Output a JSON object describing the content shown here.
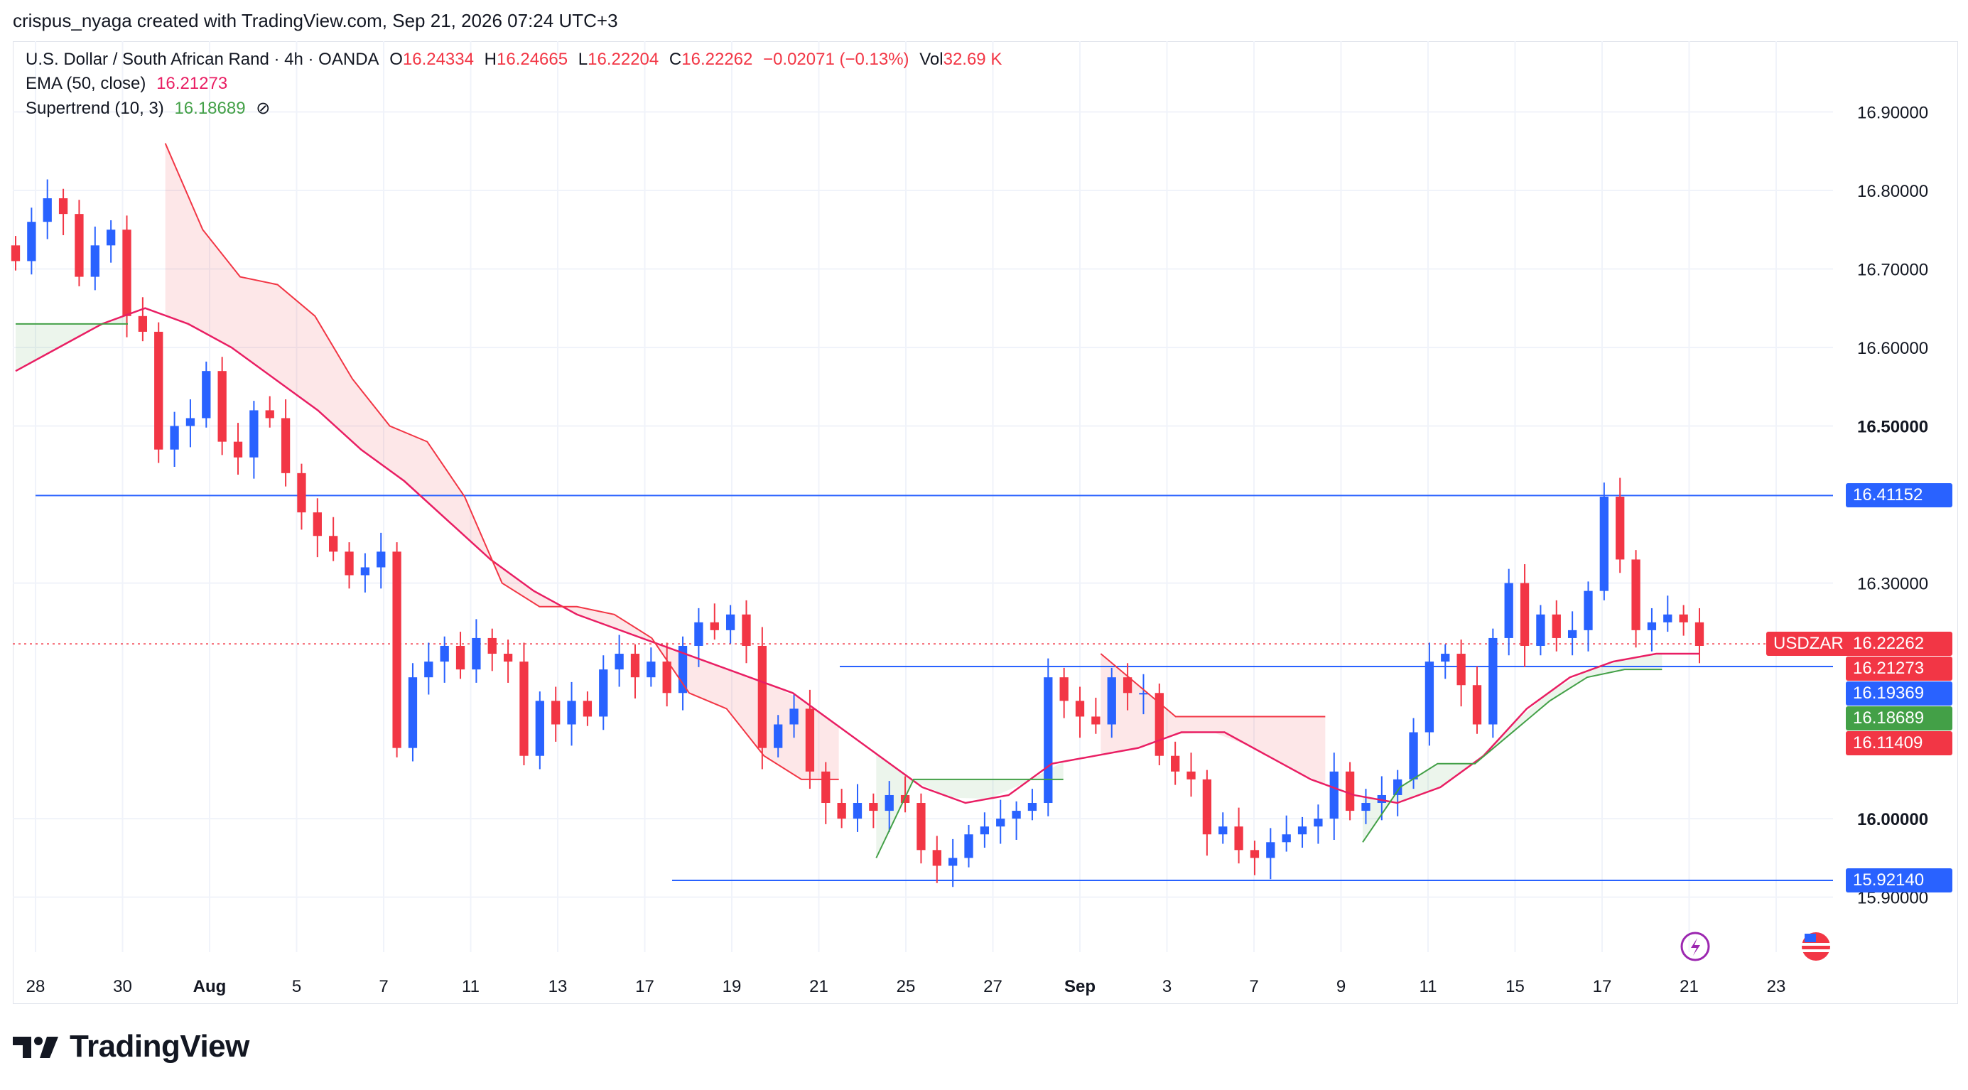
{
  "header": {
    "text": "crispus_nyaga created with TradingView.com, Sep 21, 2026 07:24 UTC+3"
  },
  "legend": {
    "symbol": "U.S. Dollar / South African Rand · 4h · OANDA",
    "o_label": "O",
    "o": "16.24334",
    "h_label": "H",
    "h": "16.24665",
    "l_label": "L",
    "l": "16.22204",
    "c_label": "C",
    "c": "16.22262",
    "change": "−0.02071 (−0.13%)",
    "vol_label": "Vol",
    "vol": "32.69 K",
    "ema_label": "EMA (50, close)",
    "ema_value": "16.21273",
    "supertrend_label": "Supertrend (10, 3)",
    "supertrend_value": "16.18689",
    "eye_icon": "hidden-eye-icon"
  },
  "footer": {
    "logo_text": "TradingView",
    "logo_icon": "tradingview-logo-icon"
  },
  "colors": {
    "up": "#2962ff",
    "down": "#f23645",
    "ema": "#e91e63",
    "st_up": "#43a047",
    "st_down": "#f23645",
    "hline": "#2962ff"
  },
  "chart_data": {
    "type": "candlestick",
    "symbol": "USDZAR",
    "timeframe": "4h",
    "x_ticks": [
      "28",
      "30",
      "Aug",
      "5",
      "7",
      "11",
      "13",
      "17",
      "19",
      "21",
      "25",
      "27",
      "Sep",
      "3",
      "7",
      "9",
      "11",
      "15",
      "17",
      "21",
      "23"
    ],
    "y_ticks": [
      "16.90000",
      "16.80000",
      "16.70000",
      "16.60000",
      "16.50000",
      "16.30000",
      "16.00000",
      "15.90000"
    ],
    "ylim": [
      15.83,
      16.99
    ],
    "price_labels": {
      "resistance": "16.41152",
      "symbol_tag": "USDZAR",
      "last": "16.22262",
      "ema": "16.21273",
      "mid_line": "16.19369",
      "supertrend": "16.18689",
      "stop": "16.11409",
      "support": "15.92140"
    },
    "horizontal_lines": [
      16.41152,
      16.19369,
      15.9214
    ],
    "last_price": 16.22262,
    "closes": [
      16.71,
      16.76,
      16.79,
      16.77,
      16.69,
      16.73,
      16.75,
      16.64,
      16.62,
      16.47,
      16.5,
      16.51,
      16.57,
      16.48,
      16.46,
      16.52,
      16.51,
      16.44,
      16.39,
      16.36,
      16.34,
      16.31,
      16.32,
      16.34,
      16.09,
      16.18,
      16.2,
      16.22,
      16.19,
      16.23,
      16.21,
      16.2,
      16.08,
      16.15,
      16.12,
      16.15,
      16.13,
      16.19,
      16.21,
      16.18,
      16.2,
      16.16,
      16.22,
      16.25,
      16.24,
      16.26,
      16.22,
      16.09,
      16.12,
      16.14,
      16.06,
      16.02,
      16.0,
      16.02,
      16.01,
      16.03,
      16.02,
      15.96,
      15.94,
      15.95,
      15.98,
      15.99,
      16.0,
      16.01,
      16.02,
      16.18,
      16.15,
      16.13,
      16.12,
      16.18,
      16.16,
      16.16,
      16.08,
      16.06,
      16.05,
      15.98,
      15.99,
      15.96,
      15.95,
      15.97,
      15.98,
      15.99,
      16.0,
      16.06,
      16.01,
      16.02,
      16.03,
      16.05,
      16.11,
      16.2,
      16.21,
      16.17,
      16.12,
      16.23,
      16.3,
      16.22,
      16.26,
      16.23,
      16.24,
      16.29,
      16.41,
      16.33,
      16.24,
      16.25,
      16.26,
      16.25,
      16.22
    ],
    "ema50": [
      16.57,
      16.6,
      16.63,
      16.65,
      16.63,
      16.6,
      16.56,
      16.52,
      16.47,
      16.43,
      16.38,
      16.33,
      16.29,
      16.26,
      16.24,
      16.22,
      16.2,
      16.18,
      16.16,
      16.12,
      16.08,
      16.04,
      16.02,
      16.03,
      16.07,
      16.08,
      16.09,
      16.11,
      16.11,
      16.08,
      16.05,
      16.03,
      16.02,
      16.04,
      16.08,
      16.14,
      16.18,
      16.2,
      16.21,
      16.21
    ],
    "supertrend": {
      "segments": [
        {
          "trend": "up",
          "values": [
            16.63,
            16.63,
            16.63,
            16.63
          ]
        },
        {
          "trend": "down",
          "values": [
            16.86,
            16.75,
            16.69,
            16.68,
            16.64,
            16.56,
            16.5,
            16.48,
            16.41,
            16.3,
            16.27,
            16.27,
            16.26,
            16.23,
            16.16,
            16.14,
            16.08,
            16.05,
            16.05
          ]
        },
        {
          "trend": "up",
          "values": [
            15.95,
            16.05,
            16.05,
            16.05,
            16.05,
            16.05
          ]
        },
        {
          "trend": "down",
          "values": [
            16.21,
            16.17,
            16.13,
            16.13,
            16.13,
            16.13,
            16.13
          ]
        },
        {
          "trend": "up",
          "values": [
            15.97,
            16.04,
            16.07,
            16.07,
            16.11,
            16.15,
            16.18,
            16.19,
            16.19
          ]
        }
      ]
    }
  }
}
